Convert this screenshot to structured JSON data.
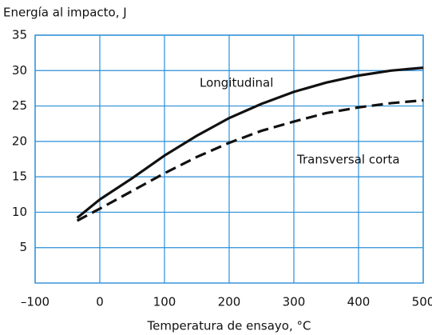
{
  "chart_data": {
    "type": "line",
    "title": "Energía al impacto, J",
    "x_label": "Temperatura de ensayo, °C",
    "x": [
      -35,
      0,
      50,
      100,
      150,
      200,
      250,
      300,
      350,
      400,
      450,
      500
    ],
    "series": [
      {
        "name": "Longitudinal",
        "color": "#111111",
        "dash": false,
        "values": [
          9.2,
          11.8,
          14.8,
          18.0,
          20.8,
          23.3,
          25.3,
          27.0,
          28.3,
          29.3,
          30.0,
          30.4
        ]
      },
      {
        "name": "Transversal corta",
        "color": "#111111",
        "dash": true,
        "values": [
          8.8,
          10.5,
          13.0,
          15.5,
          17.8,
          19.8,
          21.5,
          22.8,
          24.0,
          24.8,
          25.4,
          25.8
        ]
      }
    ],
    "xlim": [
      -100,
      500
    ],
    "xticks": [
      {
        "value": -100,
        "label": "–100"
      },
      0,
      100,
      200,
      300,
      400,
      500
    ],
    "ylim": [
      0,
      35
    ],
    "yticks": [
      5,
      10,
      15,
      20,
      25,
      30,
      35
    ],
    "grid": true
  }
}
